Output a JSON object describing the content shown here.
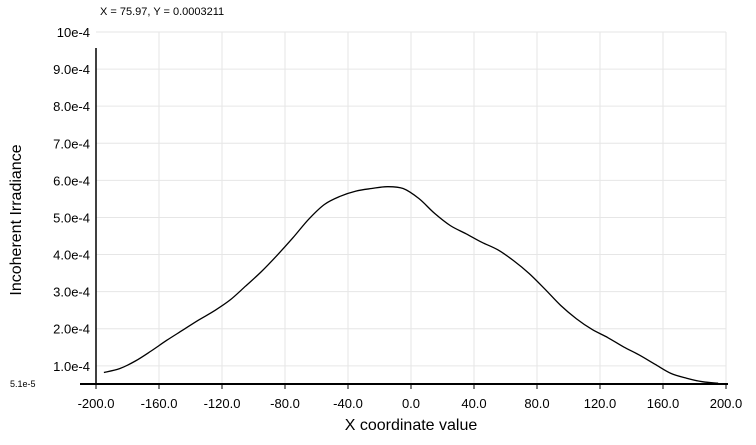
{
  "readout": "X = 75.97, Y = 0.0003211",
  "chart_data": {
    "type": "line",
    "title": "",
    "xlabel": "X coordinate value",
    "ylabel": "Incoherent Irradiance",
    "xlim": [
      -200,
      200
    ],
    "ylim": [
      5.1e-05,
      0.001
    ],
    "grid": true,
    "x_ticks": [
      {
        "value": -200,
        "label": "-200.0"
      },
      {
        "value": -160,
        "label": "-160.0"
      },
      {
        "value": -120,
        "label": "-120.0"
      },
      {
        "value": -80,
        "label": "-80.0"
      },
      {
        "value": -40,
        "label": "-40.0"
      },
      {
        "value": 0,
        "label": "0.0"
      },
      {
        "value": 40,
        "label": "40.0"
      },
      {
        "value": 80,
        "label": "80.0"
      },
      {
        "value": 120,
        "label": "120.0"
      },
      {
        "value": 160,
        "label": "160.0"
      },
      {
        "value": 200,
        "label": "200.0"
      }
    ],
    "y_ticks": [
      {
        "value": 5.1e-05,
        "label": "5.1e-5",
        "small": true
      },
      {
        "value": 0.0001,
        "label": "1.0e-4"
      },
      {
        "value": 0.0002,
        "label": "2.0e-4"
      },
      {
        "value": 0.0003,
        "label": "3.0e-4"
      },
      {
        "value": 0.0004,
        "label": "4.0e-4"
      },
      {
        "value": 0.0005,
        "label": "5.0e-4"
      },
      {
        "value": 0.0006,
        "label": "6.0e-4"
      },
      {
        "value": 0.0007,
        "label": "7.0e-4"
      },
      {
        "value": 0.0008,
        "label": "8.0e-4"
      },
      {
        "value": 0.0009,
        "label": "9.0e-4"
      },
      {
        "value": 0.001,
        "label": "10e-4"
      }
    ],
    "series": [
      {
        "color": "#000000",
        "x": [
          -195,
          -185,
          -175,
          -165,
          -155,
          -145,
          -135,
          -125,
          -115,
          -105,
          -95,
          -85,
          -75,
          -65,
          -55,
          -45,
          -35,
          -25,
          -15,
          -5,
          5,
          15,
          25,
          35,
          45,
          55,
          65,
          75,
          85,
          95,
          105,
          115,
          125,
          135,
          145,
          155,
          165,
          175,
          185,
          195
        ],
        "y": [
          8.21e-05,
          9.24e-05,
          0.000113,
          0.00014,
          0.000169,
          0.000196,
          0.000223,
          0.000248,
          0.000277,
          0.000315,
          0.000354,
          0.000398,
          0.000445,
          0.000495,
          0.000535,
          0.000557,
          0.000571,
          0.000578,
          0.000583,
          0.000578,
          0.000551,
          0.000511,
          0.000478,
          0.000456,
          0.000433,
          0.000413,
          0.000384,
          0.000349,
          0.000307,
          0.000263,
          0.000227,
          0.000198,
          0.000176,
          0.000151,
          0.000129,
          0.000104,
          7.96e-05,
          6.66e-05,
          5.72e-05,
          5.32e-05
        ]
      }
    ]
  },
  "colors": {
    "grid": "#e6e6e6",
    "axis": "#000000",
    "line": "#000000",
    "background": "#ffffff"
  }
}
